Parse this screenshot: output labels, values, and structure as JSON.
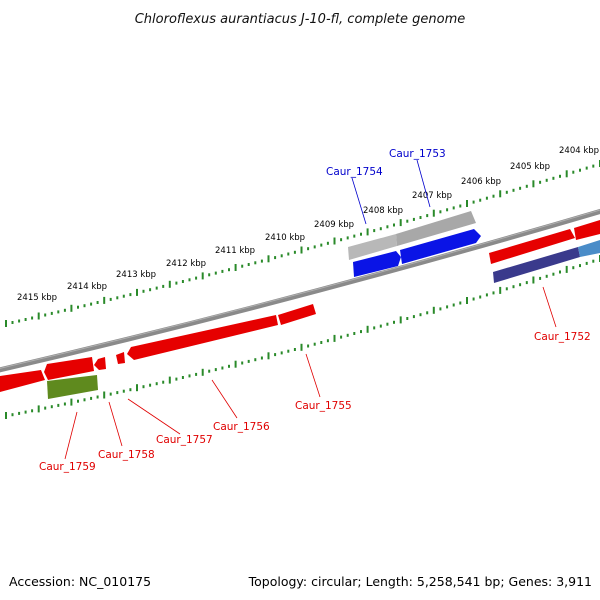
{
  "title": "Chloroflexus aurantiacus J-10-fl, complete genome",
  "footer": {
    "accession": "Accession: NC_010175",
    "stats": "Topology: circular; Length: 5,258,541 bp; Genes: 3,911"
  },
  "colors": {
    "backbone": "#7a7a7a",
    "tick": "#2a8a2a",
    "gene_red": "#e60000",
    "gene_blue": "#0010e6",
    "gene_gray": "#b4b4b4",
    "gene_olive": "#5f8a1e",
    "gene_navy": "#3a3a8c",
    "gene_steel": "#4a8cc8",
    "label_red": "#e00000",
    "label_blue": "#0000cc"
  },
  "scale_labels": [
    "2404 kbp",
    "2405 kbp",
    "2406 kbp",
    "2407 kbp",
    "2408 kbp",
    "2409 kbp",
    "2410 kbp",
    "2411 kbp",
    "2412 kbp",
    "2413 kbp",
    "2414 kbp",
    "2415 kbp"
  ],
  "gene_labels": {
    "caur_1753": "Caur_1753",
    "caur_1754": "Caur_1754",
    "caur_1752": "Caur_1752",
    "caur_1755": "Caur_1755",
    "caur_1756": "Caur_1756",
    "caur_1757": "Caur_1757",
    "caur_1758": "Caur_1758",
    "caur_1759": "Caur_1759"
  }
}
